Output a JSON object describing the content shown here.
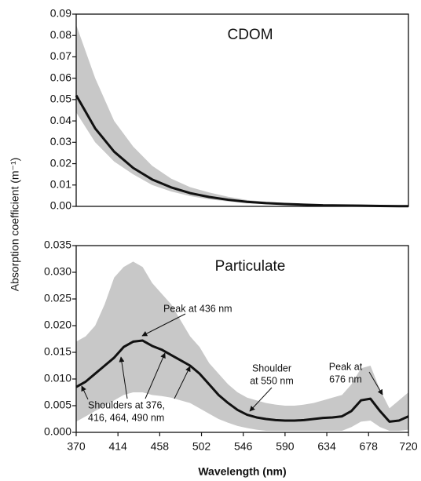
{
  "ylabel": "Absorption coefficient (m⁻¹)",
  "chart_data": [
    {
      "type": "line",
      "title": "CDOM",
      "x": [
        370,
        390,
        410,
        430,
        450,
        470,
        490,
        510,
        530,
        550,
        570,
        590,
        610,
        630,
        650,
        670,
        690,
        710,
        720
      ],
      "series": [
        {
          "color": "#111111",
          "values": [
            0.052,
            0.0365,
            0.0256,
            0.018,
            0.0126,
            0.0089,
            0.0062,
            0.0044,
            0.0031,
            0.0021,
            0.0015,
            0.0011,
            0.0008,
            0.0005,
            0.0004,
            0.0003,
            0.0002,
            0.0001,
            0.0001
          ]
        }
      ],
      "band": {
        "color": "#c8c8c8",
        "upper": [
          0.085,
          0.06,
          0.04,
          0.028,
          0.019,
          0.013,
          0.009,
          0.0065,
          0.0045,
          0.003,
          0.0022,
          0.0016,
          0.0012,
          0.0009,
          0.0007,
          0.0008,
          0.0006,
          0.0004,
          0.0003
        ],
        "lower": [
          0.044,
          0.03,
          0.021,
          0.015,
          0.01,
          0.007,
          0.0048,
          0.0033,
          0.0023,
          0.0015,
          0.001,
          0.0007,
          0.0005,
          0.0003,
          0.0002,
          0.0001,
          0.0001,
          0,
          0
        ]
      },
      "xlim": [
        370,
        720
      ],
      "ylim": [
        0,
        0.09
      ],
      "yticks": [
        {
          "value": 0,
          "label": "0.00"
        },
        0.01,
        0.02,
        0.03,
        0.04,
        0.05,
        0.06,
        0.07,
        0.08,
        0.09
      ]
    },
    {
      "type": "line",
      "title": "Particulate",
      "xlabel": "Wavelength (nm)",
      "x": [
        370,
        380,
        390,
        400,
        410,
        420,
        430,
        440,
        450,
        460,
        470,
        480,
        490,
        500,
        510,
        520,
        530,
        540,
        550,
        560,
        570,
        580,
        590,
        600,
        610,
        620,
        630,
        640,
        650,
        660,
        670,
        680,
        690,
        700,
        710,
        720
      ],
      "series": [
        {
          "color": "#111111",
          "values": [
            0.0085,
            0.0095,
            0.011,
            0.0125,
            0.014,
            0.016,
            0.017,
            0.0172,
            0.0162,
            0.0155,
            0.0145,
            0.0135,
            0.0125,
            0.011,
            0.009,
            0.007,
            0.0055,
            0.0042,
            0.0033,
            0.0028,
            0.0025,
            0.0023,
            0.0022,
            0.0022,
            0.0023,
            0.0025,
            0.0027,
            0.0028,
            0.003,
            0.004,
            0.006,
            0.0063,
            0.004,
            0.002,
            0.0022,
            0.003
          ]
        }
      ],
      "band": {
        "color": "#c8c8c8",
        "upper": [
          0.017,
          0.018,
          0.02,
          0.024,
          0.029,
          0.031,
          0.032,
          0.031,
          0.028,
          0.026,
          0.024,
          0.021,
          0.018,
          0.016,
          0.013,
          0.011,
          0.009,
          0.0075,
          0.0065,
          0.006,
          0.0055,
          0.0052,
          0.005,
          0.005,
          0.0052,
          0.0055,
          0.006,
          0.0065,
          0.007,
          0.009,
          0.012,
          0.0125,
          0.008,
          0.0045,
          0.006,
          0.0075
        ],
        "lower": [
          0.002,
          0.003,
          0.004,
          0.005,
          0.006,
          0.007,
          0.0075,
          0.0075,
          0.007,
          0.0068,
          0.0065,
          0.006,
          0.0055,
          0.0045,
          0.0035,
          0.0025,
          0.0018,
          0.0012,
          0.0008,
          0.0005,
          0.0003,
          0.0003,
          0.0003,
          0.0003,
          0.0003,
          0.0003,
          0.0003,
          0.0003,
          0.0003,
          0.001,
          0.002,
          0.0022,
          0.001,
          0.0003,
          0.0003,
          0.0005
        ]
      },
      "xlim": [
        370,
        720
      ],
      "xticks": [
        370,
        414,
        458,
        502,
        546,
        590,
        634,
        678,
        720
      ],
      "ylim": [
        0,
        0.035
      ],
      "yticks": [
        {
          "value": 0,
          "label": "0.000"
        },
        0.005,
        {
          "value": 0.01,
          "label": "0.010"
        },
        0.015,
        {
          "value": 0.02,
          "label": "0.020"
        },
        0.025,
        {
          "value": 0.03,
          "label": "0.030"
        },
        0.035
      ],
      "annotations": [
        {
          "lines": [
            "Peak at 436 nm"
          ]
        },
        {
          "lines": [
            "Shoulder",
            "at 550 nm"
          ]
        },
        {
          "lines": [
            "Peak at",
            "676 nm"
          ]
        },
        {
          "lines": [
            "Shoulders at 376,",
            "416, 464, 490 nm"
          ]
        }
      ]
    }
  ]
}
